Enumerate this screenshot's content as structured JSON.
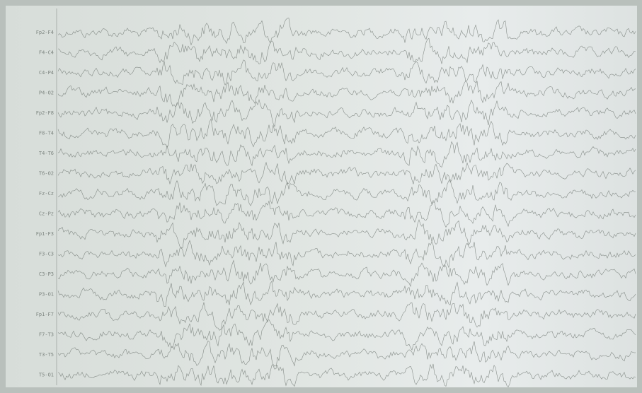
{
  "channels": [
    "Fp2-F4",
    "F4-C4",
    "C4-P4",
    "P4-O2",
    "Fp2-F8",
    "F8-T4",
    "T4-T6",
    "T6-O2",
    "Fz-Cz",
    "Cz-Pz",
    "Fp1-F3",
    "F3-C3",
    "C3-P3",
    "P3-O1",
    "Fp1-F7",
    "F7-T3",
    "T3-T5",
    "T5-O1"
  ]
}
